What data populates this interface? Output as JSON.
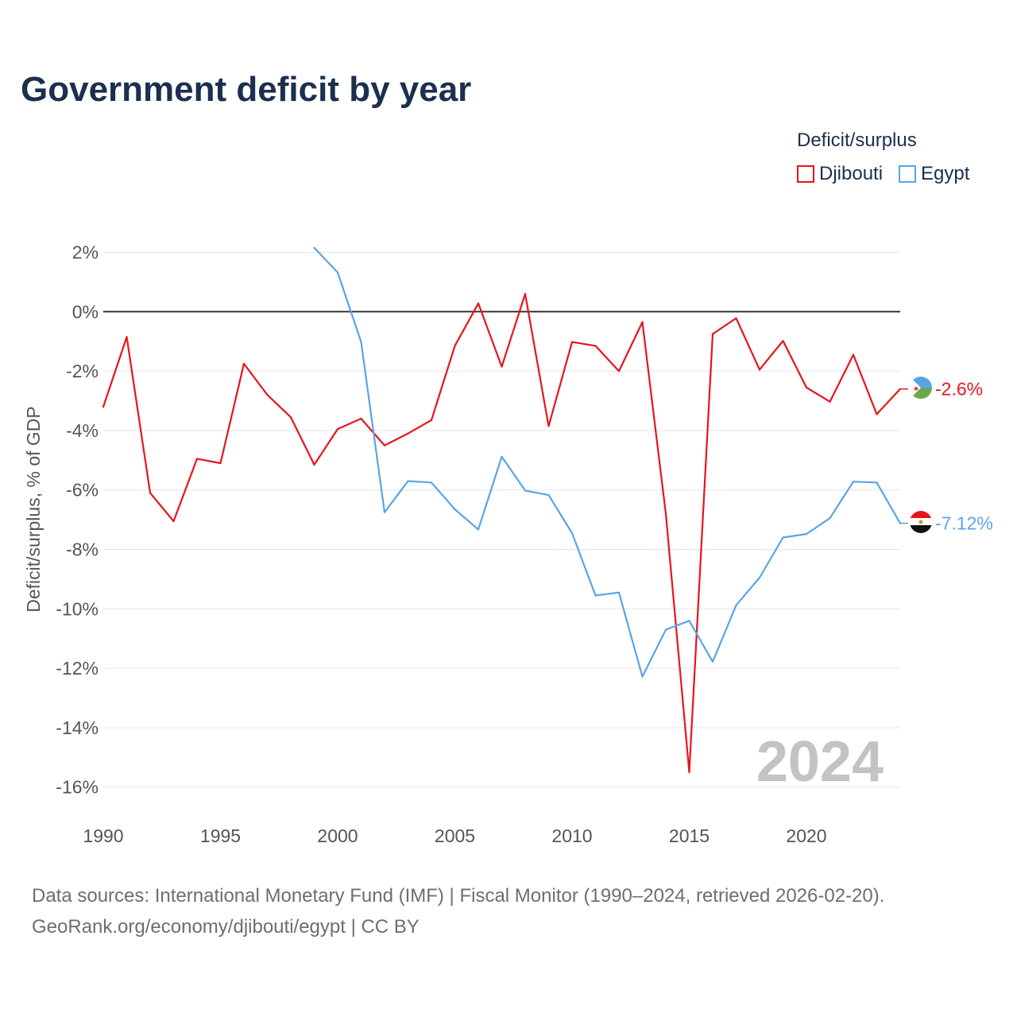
{
  "title": "Government deficit by year",
  "legend": {
    "title": "Deficit/surplus",
    "items": [
      {
        "label": "Djibouti",
        "color": "#e8141c"
      },
      {
        "label": "Egypt",
        "color": "#5aa4e6"
      }
    ]
  },
  "footer": {
    "sources": "Data sources: International Monetary Fund (IMF) | Fiscal Monitor (1990–2024, retrieved 2026-02-20).",
    "credit": "GeoRank.org/economy/djibouti/egypt | CC BY"
  },
  "chart_data": {
    "type": "line",
    "title": "Government deficit by year",
    "xlabel": "",
    "ylabel": "Deficit/surplus, % of GDP",
    "xlim": [
      1990,
      2024
    ],
    "ylim": [
      -17,
      2.5
    ],
    "x_ticks": [
      1990,
      1995,
      2000,
      2005,
      2010,
      2015,
      2020
    ],
    "y_ticks": [
      2,
      0,
      -2,
      -4,
      -6,
      -8,
      -10,
      -12,
      -14,
      -16
    ],
    "y_tick_labels": [
      "2%",
      "0%",
      "-2%",
      "-4%",
      "-6%",
      "-8%",
      "-10%",
      "-12%",
      "-14%",
      "-16%"
    ],
    "zero_line": true,
    "watermark_year": "2024",
    "grid": true,
    "series": [
      {
        "name": "Djibouti",
        "color": "#e8141c",
        "end_label": "-2.6%",
        "x": [
          1990,
          1991,
          1992,
          1993,
          1994,
          1995,
          1996,
          1997,
          1998,
          1999,
          2000,
          2001,
          2002,
          2003,
          2004,
          2005,
          2006,
          2007,
          2008,
          2009,
          2010,
          2011,
          2012,
          2013,
          2014,
          2015,
          2016,
          2017,
          2018,
          2019,
          2020,
          2021,
          2022,
          2023,
          2024
        ],
        "values": [
          -3.2,
          -0.85,
          -6.1,
          -7.05,
          -4.95,
          -5.1,
          -1.75,
          -2.8,
          -3.55,
          -5.15,
          -3.95,
          -3.6,
          -4.5,
          -4.1,
          -3.65,
          -1.15,
          0.28,
          -1.85,
          0.6,
          -3.85,
          -1.02,
          -1.15,
          -2.0,
          -0.35,
          -6.8,
          -15.5,
          -0.75,
          -0.22,
          -1.95,
          -0.98,
          -2.55,
          -3.03,
          -1.45,
          -3.45,
          -2.6
        ]
      },
      {
        "name": "Egypt",
        "color": "#5aa4e6",
        "end_label": "-7.12%",
        "x": [
          1999,
          2000,
          2001,
          2002,
          2003,
          2004,
          2005,
          2006,
          2007,
          2008,
          2009,
          2010,
          2011,
          2012,
          2013,
          2014,
          2015,
          2016,
          2017,
          2018,
          2019,
          2020,
          2021,
          2022,
          2023,
          2024
        ],
        "values": [
          2.15,
          1.32,
          -1.02,
          -6.75,
          -5.7,
          -5.75,
          -6.65,
          -7.33,
          -4.88,
          -6.02,
          -6.17,
          -7.45,
          -9.55,
          -9.45,
          -12.28,
          -10.7,
          -10.4,
          -11.78,
          -9.88,
          -8.95,
          -7.6,
          -7.48,
          -6.95,
          -5.72,
          -5.75,
          -7.12
        ]
      }
    ]
  }
}
